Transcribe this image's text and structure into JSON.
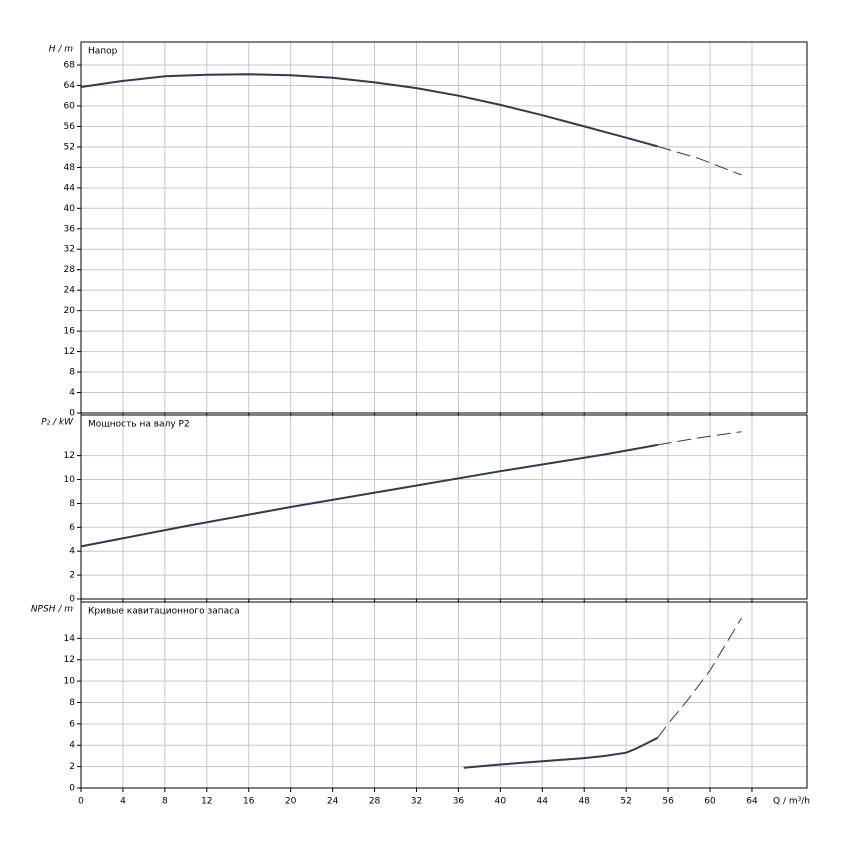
{
  "chart_data": [
    {
      "type": "line",
      "title": "Напор",
      "ylabel": "H / m",
      "x": [
        0,
        4,
        8,
        12,
        16,
        20,
        24,
        28,
        32,
        36,
        40,
        44,
        48,
        52,
        55,
        59,
        63
      ],
      "series": [
        {
          "color": "#333a4a",
          "style": "solid",
          "values": [
            63.7,
            64.9,
            65.8,
            66.1,
            66.2,
            66.0,
            65.5,
            64.6,
            63.5,
            62.0,
            60.2,
            58.2,
            56.0,
            53.8,
            52.1,
            null,
            null
          ]
        },
        {
          "color": "#333a4a",
          "style": "dashed",
          "values": [
            null,
            null,
            null,
            null,
            null,
            null,
            null,
            null,
            null,
            null,
            null,
            null,
            null,
            null,
            52.1,
            49.7,
            46.5
          ]
        }
      ],
      "ylim": [
        0,
        72.5
      ],
      "yticks": [
        0,
        4,
        8,
        12,
        16,
        20,
        24,
        28,
        32,
        36,
        40,
        44,
        48,
        52,
        56,
        60,
        64,
        68
      ],
      "grid": true
    },
    {
      "type": "line",
      "title": "Мощность на валу P2",
      "ylabel": "P₂ / kW",
      "x": [
        0,
        10,
        20,
        30,
        40,
        50,
        55,
        59,
        63
      ],
      "series": [
        {
          "color": "#333a4a",
          "style": "solid",
          "values": [
            4.4,
            6.1,
            7.7,
            9.2,
            10.7,
            12.1,
            12.9,
            null,
            null
          ]
        },
        {
          "color": "#333a4a",
          "style": "dashed",
          "values": [
            null,
            null,
            null,
            null,
            null,
            null,
            12.9,
            13.5,
            14.0
          ]
        }
      ],
      "ylim": [
        0,
        15.4
      ],
      "yticks": [
        0,
        2,
        4,
        6,
        8,
        10,
        12
      ],
      "grid": true
    },
    {
      "type": "line",
      "title": "Кривые кавитационного запаса",
      "ylabel": "NPSH / m",
      "xlabel": "Q / m³/h",
      "x": [
        36.5,
        40,
        44,
        48,
        50,
        52,
        53,
        54,
        55,
        56,
        58,
        60,
        63
      ],
      "series": [
        {
          "color": "#333a4a",
          "style": "solid",
          "values": [
            1.9,
            2.2,
            2.5,
            2.8,
            3.0,
            3.3,
            3.7,
            4.2,
            4.7,
            null,
            null,
            null,
            null
          ]
        },
        {
          "color": "#333a4a",
          "style": "dashed",
          "values": [
            null,
            null,
            null,
            null,
            null,
            null,
            null,
            null,
            4.7,
            6.0,
            8.4,
            11.0,
            15.9
          ]
        }
      ],
      "xlim": [
        0,
        69.25
      ],
      "xticks": [
        0,
        4,
        8,
        12,
        16,
        20,
        24,
        28,
        32,
        36,
        40,
        44,
        48,
        52,
        56,
        60,
        64
      ],
      "ylim": [
        0,
        17.4
      ],
      "yticks": [
        0,
        2,
        4,
        6,
        8,
        10,
        12,
        14
      ],
      "grid": true
    }
  ]
}
